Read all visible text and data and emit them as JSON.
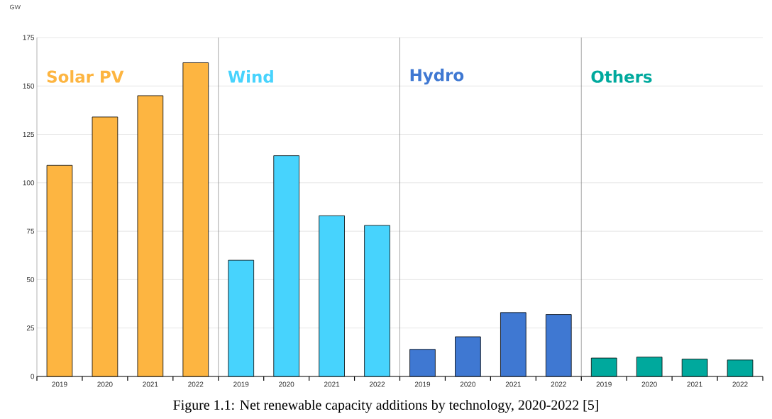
{
  "chart_data": {
    "type": "bar",
    "ylabel": "GW",
    "categories": [
      "2019",
      "2020",
      "2021",
      "2022",
      "2019",
      "2020",
      "2021",
      "2022",
      "2019",
      "2020",
      "2021",
      "2022",
      "2019",
      "2020",
      "2021",
      "2022"
    ],
    "series": [
      {
        "name": "Solar PV",
        "color": "#fdb541",
        "values": [
          109,
          134,
          145,
          162,
          null,
          null,
          null,
          null,
          null,
          null,
          null,
          null,
          null,
          null,
          null,
          null
        ]
      },
      {
        "name": "Wind",
        "color": "#47d3fd",
        "values": [
          null,
          null,
          null,
          null,
          60,
          114,
          83,
          78,
          null,
          null,
          null,
          null,
          null,
          null,
          null,
          null
        ]
      },
      {
        "name": "Hydro",
        "color": "#3f78d2",
        "values": [
          null,
          null,
          null,
          null,
          null,
          null,
          null,
          null,
          14,
          20.5,
          33,
          32,
          null,
          null,
          null,
          null
        ]
      },
      {
        "name": "Others",
        "color": "#00a99d",
        "values": [
          null,
          null,
          null,
          null,
          null,
          null,
          null,
          null,
          null,
          null,
          null,
          null,
          9.5,
          10,
          9,
          8.5
        ]
      }
    ],
    "ylim": [
      0,
      175
    ],
    "yticks": [
      0,
      25,
      50,
      75,
      100,
      125,
      150,
      175
    ],
    "grid": "y",
    "annotations": [
      "Figure 1.1: Net renewable capacity additions by technology, 2020-2022 [5]"
    ]
  }
}
